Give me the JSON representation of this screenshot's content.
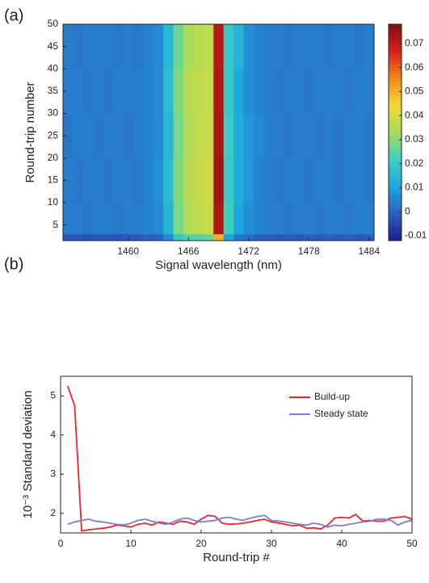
{
  "chart_data": [
    {
      "type": "heatmap",
      "panel_label": "(a)",
      "x_label": "Signal wavelength (nm)",
      "y_label": "Round-trip number",
      "xedges": [
        1453.5,
        1454.5,
        1455.5,
        1456.5,
        1457.5,
        1458.5,
        1459.5,
        1460.5,
        1461.5,
        1462.5,
        1463.5,
        1464.5,
        1465.5,
        1466.5,
        1467.5,
        1468.5,
        1469.5,
        1470.5,
        1471.5,
        1472.5,
        1473.5,
        1474.5,
        1475.5,
        1476.5,
        1477.5,
        1478.5,
        1479.5,
        1480.5,
        1481.5,
        1482.5,
        1483.5,
        1484.5
      ],
      "yedges": [
        1.5,
        3,
        10,
        20,
        30,
        40,
        50
      ],
      "z": [
        [
          -0.002,
          -0.002,
          -0.003,
          -0.002,
          -0.002,
          -0.003,
          -0.002,
          -0.002,
          -0.001,
          0.0,
          0.006,
          0.02,
          0.024,
          0.024,
          0.026,
          0.05,
          0.01,
          0.003,
          0.001,
          -0.001,
          -0.001,
          -0.002,
          -0.001,
          -0.002,
          -0.001,
          -0.002,
          -0.001,
          -0.002,
          -0.001,
          -0.002,
          -0.001
        ],
        [
          0.004,
          0.004,
          0.003,
          0.004,
          0.004,
          0.003,
          0.004,
          0.004,
          0.005,
          0.006,
          0.014,
          0.028,
          0.034,
          0.036,
          0.038,
          0.072,
          0.022,
          0.011,
          0.007,
          0.005,
          0.004,
          0.004,
          0.003,
          0.004,
          0.004,
          0.003,
          0.004,
          0.004,
          0.003,
          0.004,
          0.004
        ],
        [
          0.004,
          0.003,
          0.004,
          0.004,
          0.003,
          0.004,
          0.004,
          0.003,
          0.005,
          0.007,
          0.016,
          0.029,
          0.035,
          0.037,
          0.039,
          0.074,
          0.02,
          0.012,
          0.008,
          0.005,
          0.004,
          0.003,
          0.004,
          0.004,
          0.003,
          0.004,
          0.004,
          0.003,
          0.004,
          0.004,
          0.003
        ],
        [
          0.003,
          0.004,
          0.004,
          0.003,
          0.004,
          0.004,
          0.003,
          0.004,
          0.005,
          0.006,
          0.015,
          0.028,
          0.034,
          0.037,
          0.038,
          0.073,
          0.021,
          0.012,
          0.008,
          0.006,
          0.004,
          0.004,
          0.003,
          0.004,
          0.004,
          0.003,
          0.004,
          0.003,
          0.004,
          0.004,
          0.003
        ],
        [
          0.004,
          0.004,
          0.003,
          0.004,
          0.003,
          0.004,
          0.004,
          0.004,
          0.005,
          0.006,
          0.016,
          0.029,
          0.035,
          0.036,
          0.037,
          0.072,
          0.02,
          0.011,
          0.007,
          0.005,
          0.004,
          0.003,
          0.004,
          0.004,
          0.003,
          0.004,
          0.004,
          0.004,
          0.003,
          0.004,
          0.004
        ],
        [
          0.004,
          0.003,
          0.004,
          0.004,
          0.004,
          0.003,
          0.004,
          0.003,
          0.005,
          0.006,
          0.015,
          0.027,
          0.033,
          0.035,
          0.036,
          0.071,
          0.019,
          0.014,
          0.007,
          0.005,
          0.004,
          0.004,
          0.003,
          0.004,
          0.004,
          0.004,
          0.003,
          0.004,
          0.004,
          0.003,
          0.004
        ]
      ],
      "xlim": [
        1453.5,
        1484.5
      ],
      "xticks": [
        1460,
        1466,
        1472,
        1478,
        1484
      ],
      "ylim": [
        1.5,
        50
      ],
      "yticks": [
        5,
        10,
        15,
        20,
        25,
        30,
        35,
        40,
        45,
        50
      ],
      "clim": [
        -0.012,
        0.078
      ],
      "cticks": [
        -0.01,
        0,
        0.01,
        0.02,
        0.03,
        0.04,
        0.05,
        0.06,
        0.07
      ],
      "colormap": [
        "#1a1f8c",
        "#2d5fc0",
        "#1ea6e0",
        "#3ed0c0",
        "#a8dc5a",
        "#f5d835",
        "#f08a1e",
        "#d8201a",
        "#7e0f10"
      ]
    },
    {
      "type": "line",
      "panel_label": "(b)",
      "x_label": "Round-trip #",
      "y_label": "10⁻³ Standard deviation",
      "x": [
        1,
        2,
        3,
        4,
        5,
        6,
        7,
        8,
        9,
        10,
        11,
        12,
        13,
        14,
        15,
        16,
        17,
        18,
        19,
        20,
        21,
        22,
        23,
        24,
        25,
        26,
        27,
        28,
        29,
        30,
        31,
        32,
        33,
        34,
        35,
        36,
        37,
        38,
        39,
        40,
        41,
        42,
        43,
        44,
        45,
        46,
        47,
        48,
        49,
        50
      ],
      "series": [
        {
          "name": "Build-up",
          "color": "#e8262c",
          "values": [
            5.25,
            4.75,
            1.55,
            1.58,
            1.6,
            1.62,
            1.65,
            1.7,
            1.68,
            1.65,
            1.72,
            1.75,
            1.7,
            1.78,
            1.75,
            1.72,
            1.8,
            1.78,
            1.72,
            1.85,
            1.95,
            1.92,
            1.75,
            1.72,
            1.73,
            1.75,
            1.78,
            1.82,
            1.85,
            1.78,
            1.75,
            1.72,
            1.68,
            1.7,
            1.62,
            1.63,
            1.6,
            1.7,
            1.88,
            1.9,
            1.88,
            1.97,
            1.8,
            1.82,
            1.8,
            1.8,
            1.88,
            1.9,
            1.92,
            1.85
          ]
        },
        {
          "name": "Steady state",
          "color": "#7a80c8",
          "values": [
            1.72,
            1.78,
            1.82,
            1.85,
            1.8,
            1.78,
            1.75,
            1.72,
            1.7,
            1.75,
            1.82,
            1.85,
            1.8,
            1.75,
            1.72,
            1.78,
            1.85,
            1.88,
            1.82,
            1.78,
            1.8,
            1.82,
            1.88,
            1.9,
            1.85,
            1.82,
            1.88,
            1.92,
            1.95,
            1.82,
            1.8,
            1.78,
            1.75,
            1.72,
            1.7,
            1.75,
            1.72,
            1.65,
            1.7,
            1.68,
            1.72,
            1.75,
            1.78,
            1.8,
            1.85,
            1.85,
            1.82,
            1.7,
            1.78,
            1.82
          ]
        }
      ],
      "xlim": [
        0,
        50
      ],
      "xticks": [
        0,
        10,
        20,
        30,
        40,
        50
      ],
      "ylim": [
        1.5,
        5.5
      ],
      "yticks": [
        2,
        3,
        4,
        5
      ],
      "legend": "upper right"
    }
  ]
}
